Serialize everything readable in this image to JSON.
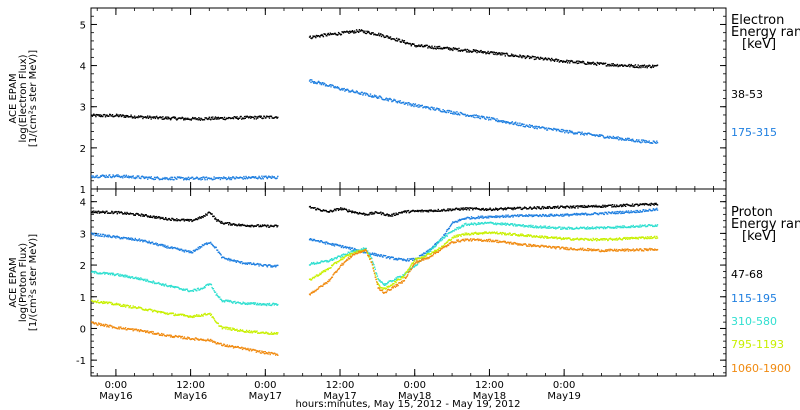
{
  "chart_data": [
    {
      "type": "scatter",
      "ylabel_lines": [
        "ACE EPAM",
        "log(Electron Flux)",
        "[1/(cm²s ster MeV)]"
      ],
      "ylim": [
        1,
        5.4
      ],
      "yticks": [
        "1",
        "2",
        "3",
        "4",
        "5"
      ],
      "legend": {
        "title": "Electron",
        "subtitle": "Energy ran",
        "unit": "[keV]",
        "placement": "right"
      },
      "series": [
        {
          "name": "38-53",
          "color": "#000000",
          "segments": [
            [
              [
                -4,
                2.8
              ],
              [
                0,
                2.8
              ],
              [
                6,
                2.75
              ],
              [
                12,
                2.72
              ],
              [
                18,
                2.74
              ],
              [
                24,
                2.76
              ],
              [
                26,
                2.77
              ]
            ],
            [
              [
                31,
                4.7
              ],
              [
                33,
                4.75
              ],
              [
                36,
                4.8
              ],
              [
                39,
                4.86
              ],
              [
                42,
                4.78
              ],
              [
                45,
                4.65
              ],
              [
                48,
                4.5
              ],
              [
                54,
                4.42
              ],
              [
                60,
                4.33
              ],
              [
                66,
                4.22
              ],
              [
                72,
                4.12
              ],
              [
                78,
                4.05
              ],
              [
                84,
                4.0
              ],
              [
                87,
                4.0
              ]
            ]
          ]
        },
        {
          "name": "175-315",
          "color": "#1f7fe0",
          "segments": [
            [
              [
                -4,
                1.33
              ],
              [
                0,
                1.33
              ],
              [
                6,
                1.28
              ],
              [
                12,
                1.27
              ],
              [
                18,
                1.28
              ],
              [
                24,
                1.3
              ],
              [
                26,
                1.3
              ]
            ],
            [
              [
                31,
                3.65
              ],
              [
                33,
                3.58
              ],
              [
                36,
                3.45
              ],
              [
                39,
                3.35
              ],
              [
                42,
                3.25
              ],
              [
                45,
                3.15
              ],
              [
                48,
                3.05
              ],
              [
                54,
                2.88
              ],
              [
                60,
                2.72
              ],
              [
                66,
                2.55
              ],
              [
                72,
                2.42
              ],
              [
                78,
                2.3
              ],
              [
                84,
                2.18
              ],
              [
                87,
                2.15
              ]
            ]
          ]
        }
      ]
    },
    {
      "type": "scatter",
      "ylabel_lines": [
        "ACE EPAM",
        "log(Proton Flux)",
        "[1/(cm²s ster MeV)]"
      ],
      "ylim": [
        -1.5,
        4.4
      ],
      "yticks": [
        "-1",
        "0",
        "1",
        "2",
        "3",
        "4"
      ],
      "xlabel": "hours:minutes, May 15, 2012 - May 19, 2012",
      "xlim": [
        -4,
        98
      ],
      "xticks": [
        {
          "x": 0,
          "time": "0:00",
          "date": "May16"
        },
        {
          "x": 12,
          "time": "12:00",
          "date": "May16"
        },
        {
          "x": 24,
          "time": "0:00",
          "date": "May17"
        },
        {
          "x": 36,
          "time": "12:00",
          "date": "May17"
        },
        {
          "x": 48,
          "time": "0:00",
          "date": "May18"
        },
        {
          "x": 60,
          "time": "12:00",
          "date": "May18"
        },
        {
          "x": 72,
          "time": "0:00",
          "date": "May19"
        }
      ],
      "legend": {
        "title": "Proton",
        "subtitle": "Energy ran",
        "unit": "[keV]",
        "placement": "right"
      },
      "series": [
        {
          "name": "47-68",
          "color": "#000000",
          "segments": [
            [
              [
                -4,
                3.7
              ],
              [
                0,
                3.68
              ],
              [
                4,
                3.6
              ],
              [
                8,
                3.48
              ],
              [
                12,
                3.42
              ],
              [
                14,
                3.55
              ],
              [
                15,
                3.7
              ],
              [
                16,
                3.45
              ],
              [
                17,
                3.35
              ],
              [
                20,
                3.28
              ],
              [
                24,
                3.25
              ],
              [
                26,
                3.25
              ]
            ],
            [
              [
                31,
                3.85
              ],
              [
                34,
                3.7
              ],
              [
                36,
                3.8
              ],
              [
                38,
                3.7
              ],
              [
                40,
                3.62
              ],
              [
                42,
                3.68
              ],
              [
                44,
                3.58
              ],
              [
                46,
                3.7
              ],
              [
                48,
                3.72
              ],
              [
                52,
                3.75
              ],
              [
                56,
                3.8
              ],
              [
                60,
                3.78
              ],
              [
                66,
                3.82
              ],
              [
                72,
                3.85
              ],
              [
                78,
                3.88
              ],
              [
                84,
                3.92
              ],
              [
                87,
                3.95
              ]
            ]
          ]
        },
        {
          "name": "115-195",
          "color": "#1f7fe0",
          "segments": [
            [
              [
                -4,
                3.0
              ],
              [
                0,
                2.9
              ],
              [
                4,
                2.8
              ],
              [
                8,
                2.6
              ],
              [
                12,
                2.42
              ],
              [
                14,
                2.65
              ],
              [
                15,
                2.75
              ],
              [
                16,
                2.55
              ],
              [
                17,
                2.25
              ],
              [
                20,
                2.1
              ],
              [
                24,
                2.0
              ],
              [
                26,
                1.98
              ]
            ],
            [
              [
                31,
                2.85
              ],
              [
                34,
                2.7
              ],
              [
                36,
                2.62
              ],
              [
                40,
                2.42
              ],
              [
                44,
                2.25
              ],
              [
                46,
                2.18
              ],
              [
                48,
                2.2
              ],
              [
                50,
                2.45
              ],
              [
                52,
                2.8
              ],
              [
                54,
                3.35
              ],
              [
                56,
                3.5
              ],
              [
                60,
                3.55
              ],
              [
                66,
                3.58
              ],
              [
                72,
                3.6
              ],
              [
                78,
                3.65
              ],
              [
                84,
                3.72
              ],
              [
                87,
                3.78
              ]
            ]
          ]
        },
        {
          "name": "310-580",
          "color": "#2fdfd0",
          "segments": [
            [
              [
                -4,
                1.8
              ],
              [
                0,
                1.72
              ],
              [
                4,
                1.58
              ],
              [
                8,
                1.38
              ],
              [
                12,
                1.2
              ],
              [
                14,
                1.3
              ],
              [
                15,
                1.45
              ],
              [
                16,
                1.1
              ],
              [
                17,
                0.9
              ],
              [
                20,
                0.82
              ],
              [
                24,
                0.78
              ],
              [
                26,
                0.78
              ]
            ],
            [
              [
                31,
                2.05
              ],
              [
                34,
                2.15
              ],
              [
                36,
                2.3
              ],
              [
                38,
                2.45
              ],
              [
                40,
                2.55
              ],
              [
                41,
                2.2
              ],
              [
                42,
                1.6
              ],
              [
                43,
                1.4
              ],
              [
                46,
                1.7
              ],
              [
                48,
                2.0
              ],
              [
                50,
                2.4
              ],
              [
                52,
                2.8
              ],
              [
                54,
                3.1
              ],
              [
                56,
                3.3
              ],
              [
                60,
                3.35
              ],
              [
                66,
                3.25
              ],
              [
                72,
                3.18
              ],
              [
                78,
                3.2
              ],
              [
                84,
                3.25
              ],
              [
                87,
                3.28
              ]
            ]
          ]
        },
        {
          "name": "795-1193",
          "color": "#c8f000",
          "segments": [
            [
              [
                -4,
                0.9
              ],
              [
                0,
                0.78
              ],
              [
                4,
                0.65
              ],
              [
                8,
                0.5
              ],
              [
                12,
                0.4
              ],
              [
                14,
                0.45
              ],
              [
                15,
                0.5
              ],
              [
                16,
                0.2
              ],
              [
                17,
                0.05
              ],
              [
                20,
                -0.05
              ],
              [
                24,
                -0.12
              ],
              [
                26,
                -0.15
              ]
            ],
            [
              [
                31,
                1.55
              ],
              [
                34,
                1.9
              ],
              [
                36,
                2.2
              ],
              [
                38,
                2.4
              ],
              [
                40,
                2.5
              ],
              [
                41,
                2.1
              ],
              [
                42,
                1.4
              ],
              [
                43,
                1.25
              ],
              [
                46,
                1.65
              ],
              [
                48,
                2.2
              ],
              [
                50,
                2.35
              ],
              [
                52,
                2.55
              ],
              [
                54,
                2.9
              ],
              [
                56,
                3.0
              ],
              [
                60,
                3.05
              ],
              [
                66,
                2.95
              ],
              [
                72,
                2.85
              ],
              [
                78,
                2.82
              ],
              [
                84,
                2.88
              ],
              [
                87,
                2.9
              ]
            ]
          ]
        },
        {
          "name": "1060-1900",
          "color": "#f08a10",
          "segments": [
            [
              [
                -4,
                0.2
              ],
              [
                0,
                0.05
              ],
              [
                4,
                -0.05
              ],
              [
                8,
                -0.2
              ],
              [
                12,
                -0.3
              ],
              [
                15,
                -0.35
              ],
              [
                17,
                -0.5
              ],
              [
                20,
                -0.6
              ],
              [
                24,
                -0.75
              ],
              [
                26,
                -0.8
              ]
            ],
            [
              [
                31,
                1.1
              ],
              [
                34,
                1.5
              ],
              [
                36,
                2.0
              ],
              [
                38,
                2.35
              ],
              [
                40,
                2.5
              ],
              [
                41,
                2.1
              ],
              [
                42,
                1.3
              ],
              [
                43,
                1.15
              ],
              [
                46,
                1.5
              ],
              [
                48,
                2.1
              ],
              [
                50,
                2.25
              ],
              [
                52,
                2.5
              ],
              [
                54,
                2.75
              ],
              [
                56,
                2.82
              ],
              [
                60,
                2.8
              ],
              [
                66,
                2.65
              ],
              [
                72,
                2.55
              ],
              [
                78,
                2.48
              ],
              [
                84,
                2.5
              ],
              [
                87,
                2.52
              ]
            ]
          ]
        }
      ]
    }
  ]
}
